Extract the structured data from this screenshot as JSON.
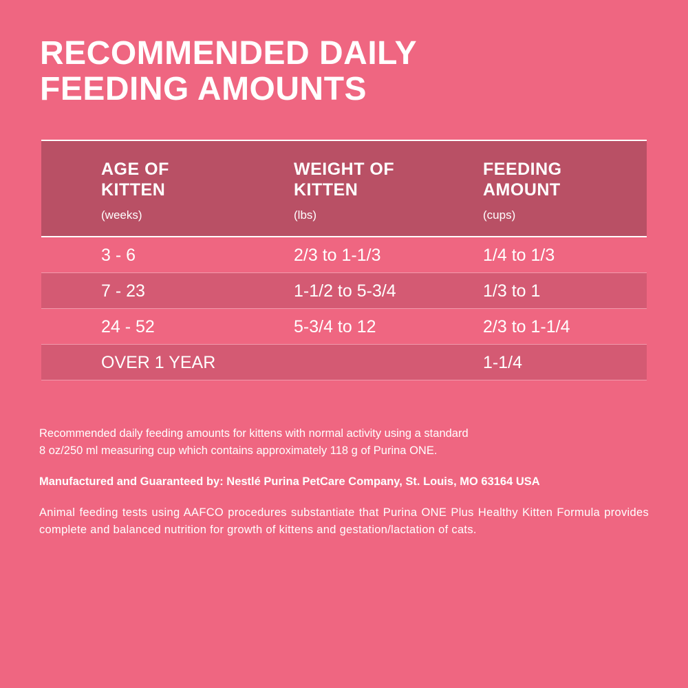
{
  "title": [
    "RECOMMENDED DAILY",
    "FEEDING AMOUNTS"
  ],
  "table": {
    "headers": [
      {
        "label": [
          "AGE OF",
          "KITTEN"
        ],
        "unit": "(weeks)"
      },
      {
        "label": [
          "WEIGHT OF",
          "KITTEN"
        ],
        "unit": "(lbs)"
      },
      {
        "label": [
          "FEEDING",
          "AMOUNT"
        ],
        "unit": "(cups)"
      }
    ],
    "rows": [
      [
        "3 - 6",
        "2/3 to 1-1/3",
        "1/4 to 1/3"
      ],
      [
        "7 - 23",
        "1-1/2 to 5-3/4",
        "1/3 to 1"
      ],
      [
        "24 - 52",
        "5-3/4 to 12",
        "2/3 to 1-1/4"
      ],
      [
        "OVER 1 YEAR",
        "",
        "1-1/4"
      ]
    ]
  },
  "notes": {
    "feeding_line1": "Recommended daily feeding amounts for kittens with normal activity using a standard",
    "feeding_line2": "8 oz/250 ml measuring cup which contains approximately 118 g of Purina ONE.",
    "manufacturer": "Manufactured and Guaranteed by: Nestlé Purina PetCare Company, St. Louis, MO 63164 USA",
    "aafco": "Animal feeding tests using AAFCO procedures substantiate that Purina ONE Plus Healthy Kitten Formula provides complete and balanced nutrition for growth of kittens and gestation/lactation of cats."
  },
  "colors": {
    "background": "#EF6681",
    "header": "#B95065",
    "alt_row": "#D45A73"
  }
}
